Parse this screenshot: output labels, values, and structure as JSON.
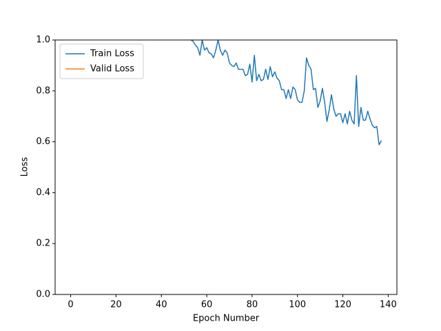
{
  "chart_data": {
    "type": "line",
    "x_label": "Epoch Number",
    "y_label": "Loss",
    "x": [
      53,
      54,
      55,
      56,
      57,
      58,
      59,
      60,
      61,
      62,
      63,
      64,
      65,
      66,
      67,
      68,
      69,
      70,
      71,
      72,
      73,
      74,
      75,
      76,
      77,
      78,
      79,
      80,
      81,
      82,
      83,
      84,
      85,
      86,
      87,
      88,
      89,
      90,
      91,
      92,
      93,
      94,
      95,
      96,
      97,
      98,
      99,
      100,
      101,
      102,
      103,
      104,
      105,
      106,
      107,
      108,
      109,
      110,
      111,
      112,
      113,
      114,
      115,
      116,
      117,
      118,
      119,
      120,
      121,
      122,
      123,
      124,
      125,
      126,
      127,
      128,
      129,
      130,
      131,
      132,
      133,
      134,
      135,
      136,
      137
    ],
    "series": [
      {
        "name": "Train Loss",
        "color": "#1f77b4",
        "values": [
          1.0,
          0.995,
          0.98,
          0.97,
          0.94,
          1.0,
          0.96,
          0.97,
          0.95,
          0.945,
          0.93,
          0.96,
          1.0,
          0.96,
          0.94,
          0.96,
          0.95,
          0.91,
          0.9,
          0.895,
          0.91,
          0.885,
          0.885,
          0.885,
          0.86,
          0.865,
          0.905,
          0.835,
          0.94,
          0.84,
          0.865,
          0.84,
          0.845,
          0.885,
          0.845,
          0.895,
          0.855,
          0.875,
          0.85,
          0.84,
          0.805,
          0.805,
          0.77,
          0.805,
          0.77,
          0.815,
          0.805,
          0.765,
          0.755,
          0.755,
          0.8,
          0.93,
          0.9,
          0.885,
          0.805,
          0.81,
          0.735,
          0.76,
          0.81,
          0.755,
          0.68,
          0.725,
          0.785,
          0.73,
          0.7,
          0.71,
          0.71,
          0.675,
          0.71,
          0.67,
          0.72,
          0.685,
          0.67,
          0.86,
          0.66,
          0.735,
          0.685,
          0.685,
          0.72,
          0.69,
          0.665,
          0.655,
          0.66,
          0.588,
          0.605
        ]
      },
      {
        "name": "Valid Loss",
        "color": "#ff7f0e",
        "values": [
          null,
          null,
          null,
          null,
          null,
          null,
          null,
          null,
          null,
          null,
          null,
          null,
          null,
          null,
          null,
          null,
          null,
          null,
          null,
          null,
          null,
          null,
          null,
          null,
          null,
          null,
          null,
          null,
          null,
          null,
          null,
          null,
          null,
          null,
          null,
          null,
          null,
          null,
          null,
          null,
          null,
          null,
          null,
          null,
          null,
          null,
          null,
          null,
          null,
          null,
          null,
          null,
          null,
          null,
          null,
          null,
          null,
          null,
          null,
          null,
          null,
          null,
          null,
          null,
          null,
          null,
          null,
          null,
          null,
          null,
          null,
          null,
          null,
          null,
          null,
          null,
          null,
          null,
          null,
          null,
          null,
          null,
          null,
          null,
          null
        ]
      }
    ],
    "xlim": [
      -6.85,
      143.85
    ],
    "xticks": [
      0,
      20,
      40,
      60,
      80,
      100,
      120,
      140
    ],
    "ylim": [
      0,
      1
    ],
    "yticks": [
      {
        "value": 0,
        "label": "0.0"
      },
      0.2,
      0.4,
      0.6,
      0.8,
      {
        "value": 1,
        "label": "1.0"
      }
    ],
    "grid": false,
    "legend": "upper left"
  }
}
